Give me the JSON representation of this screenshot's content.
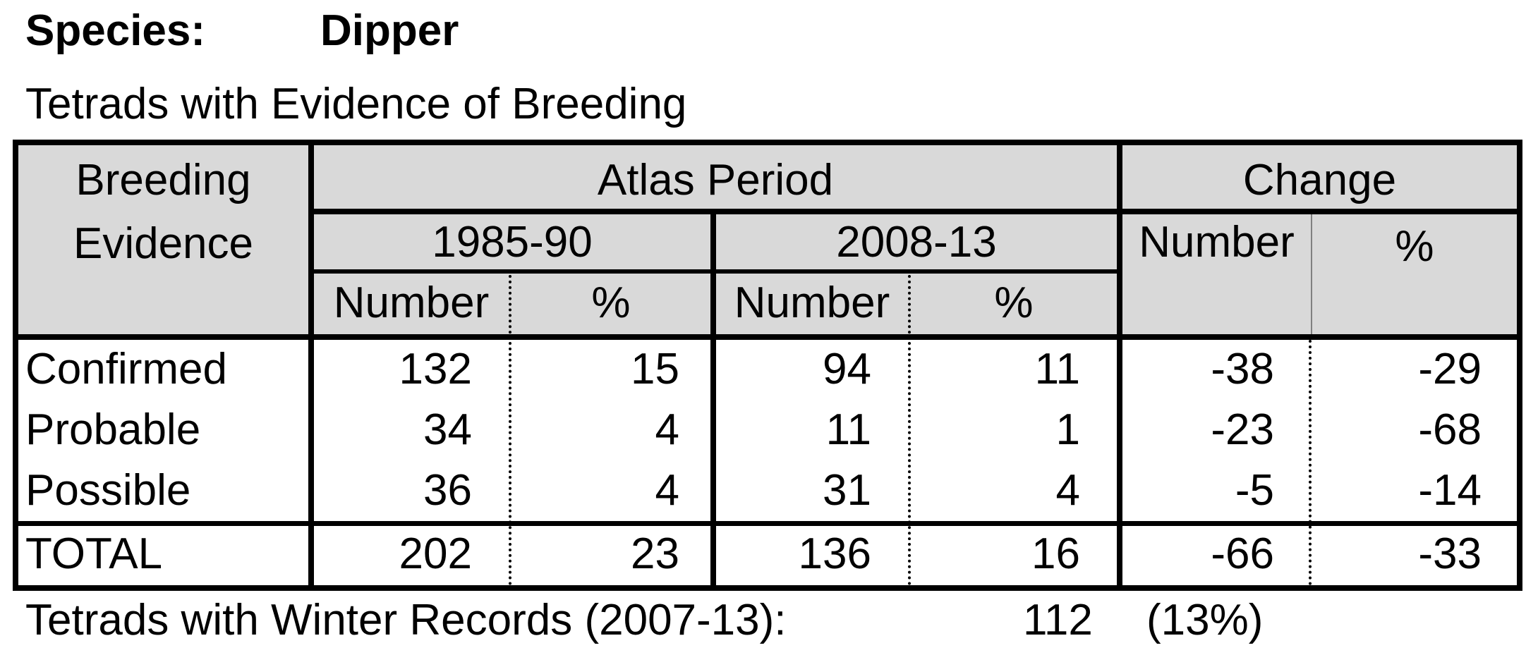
{
  "species": {
    "label": "Species:",
    "name": "Dipper"
  },
  "subtitle": "Tetrads with Evidence of Breeding",
  "table": {
    "header": {
      "breeding_line1": "Breeding",
      "breeding_line2": "Evidence",
      "atlas_period": "Atlas Period",
      "change": "Change",
      "period1": "1985-90",
      "period2": "2008-13",
      "number": "Number",
      "percent": "%"
    },
    "rows": [
      {
        "label": "Confirmed",
        "p1_number": "132",
        "p1_pct": "15",
        "p2_number": "94",
        "p2_pct": "11",
        "change_number": "-38",
        "change_pct": "-29"
      },
      {
        "label": "Probable",
        "p1_number": "34",
        "p1_pct": "4",
        "p2_number": "11",
        "p2_pct": "1",
        "change_number": "-23",
        "change_pct": "-68"
      },
      {
        "label": "Possible",
        "p1_number": "36",
        "p1_pct": "4",
        "p2_number": "31",
        "p2_pct": "4",
        "change_number": "-5",
        "change_pct": "-14"
      }
    ],
    "total": {
      "label": "TOTAL",
      "p1_number": "202",
      "p1_pct": "23",
      "p2_number": "136",
      "p2_pct": "16",
      "change_number": "-66",
      "change_pct": "-33"
    }
  },
  "footer": {
    "label": "Tetrads with Winter Records (2007-13):",
    "count": "112",
    "percent": "(13%)"
  }
}
